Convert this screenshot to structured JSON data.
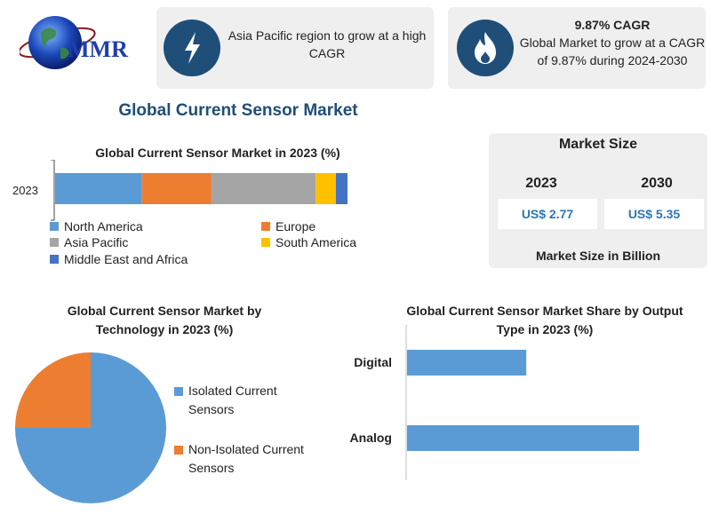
{
  "logo": {
    "text": "MMR"
  },
  "cards": [
    {
      "icon": "lightning-icon",
      "text": "Asia Pacific region to grow at a high CAGR"
    },
    {
      "icon": "flame-icon",
      "title": "9.87% CAGR",
      "text": "Global Market to grow at a CAGR of 9.87% during 2024-2030"
    }
  ],
  "main_title": "Global Current Sensor Market",
  "market_size": {
    "title": "Market Size",
    "years": [
      "2023",
      "2030"
    ],
    "values": [
      "US$ 2.77",
      "US$ 5.35"
    ],
    "footer": "Market Size in Billion"
  },
  "colors": {
    "north_america": "#5b9bd5",
    "europe": "#ed7d31",
    "asia_pacific": "#a5a5a5",
    "south_america": "#ffc000",
    "mea": "#4472c4",
    "dark_blue": "#1f4e79"
  },
  "chart_data": [
    {
      "type": "bar",
      "stacked": true,
      "orientation": "horizontal",
      "title": "Global Current Sensor Market in 2023 (%)",
      "categories": [
        "2023"
      ],
      "series": [
        {
          "name": "North America",
          "values": [
            30
          ]
        },
        {
          "name": "Europe",
          "values": [
            24
          ]
        },
        {
          "name": "Asia Pacific",
          "values": [
            36
          ]
        },
        {
          "name": "South America",
          "values": [
            7
          ]
        },
        {
          "name": "Middle East and Africa",
          "values": [
            4
          ]
        }
      ],
      "legend": "bottom"
    },
    {
      "type": "pie",
      "title": "Global Current Sensor Market by Technology in 2023 (%)",
      "categories": [
        "Isolated Current Sensors",
        "Non-Isolated Current Sensors"
      ],
      "values": [
        75,
        25
      ],
      "legend": "right"
    },
    {
      "type": "bar",
      "orientation": "horizontal",
      "title": "Global Current Sensor Market Share by Output Type in 2023 (%)",
      "categories": [
        "Digital",
        "Analog"
      ],
      "values": [
        37,
        72
      ]
    }
  ]
}
